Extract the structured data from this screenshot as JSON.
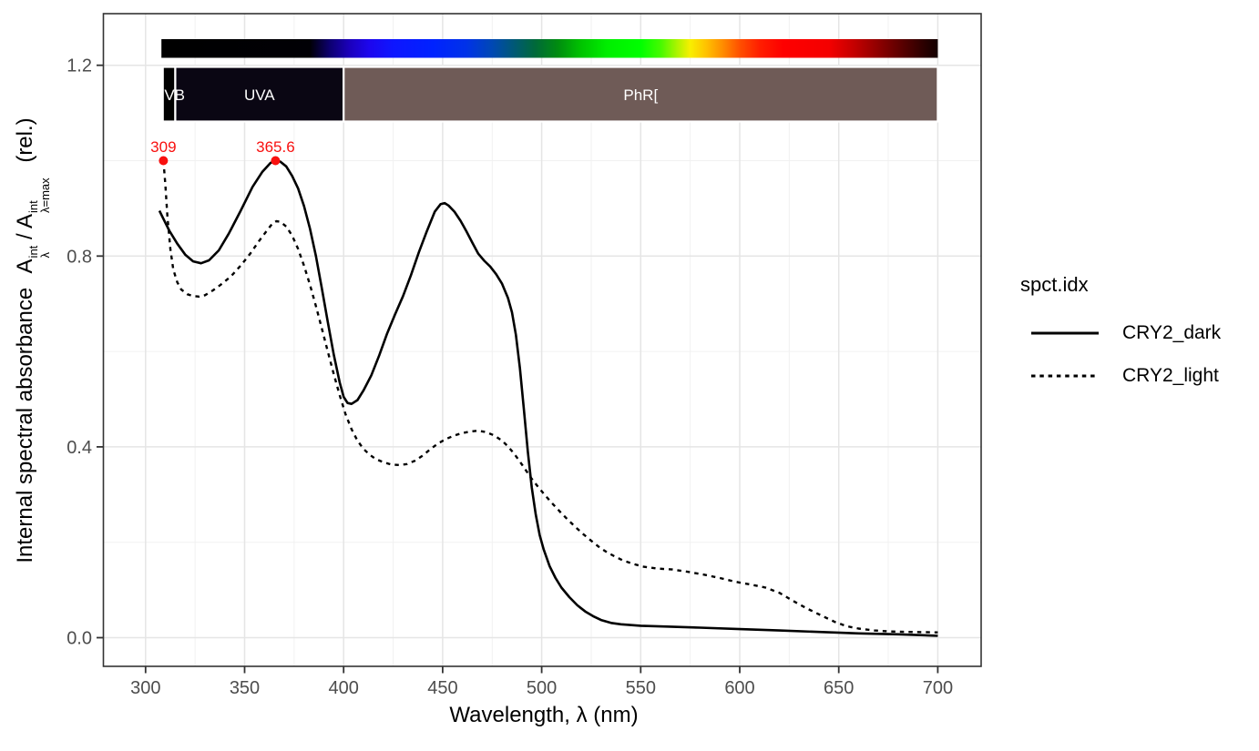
{
  "x_axis": {
    "title": "Wavelength, λ (nm)",
    "tick_labels": [
      "300",
      "350",
      "400",
      "450",
      "500",
      "550",
      "600",
      "650",
      "700"
    ]
  },
  "y_axis": {
    "title_prefix": "Internal spectral absorbance",
    "a_base": "A",
    "a_sup": "int",
    "a_sub_1": "λ",
    "a_sub_2": "λ=max",
    "slash": "/",
    "title_suffix": "(rel.)",
    "tick_labels": [
      "0.0",
      "0.4",
      "0.8",
      "1.2"
    ]
  },
  "legend": {
    "title": "spct.idx",
    "entries": [
      {
        "label": "CRY2_dark",
        "linetype": "solid"
      },
      {
        "label": "CRY2_light",
        "linetype": "dashed"
      }
    ]
  },
  "chart_data": {
    "type": "line",
    "title": "",
    "xlabel": "Wavelength, λ (nm)",
    "ylabel": "Internal spectral absorbance A_λ^int/A_λ=max^int (rel.)",
    "xlim": [
      278.7,
      721.9
    ],
    "ylim": [
      -0.06,
      1.308
    ],
    "x_ticks": [
      300,
      350,
      400,
      450,
      500,
      550,
      600,
      650,
      700
    ],
    "x_minor_ticks": [
      325,
      375,
      425,
      475,
      525,
      575,
      625,
      675
    ],
    "y_ticks": [
      {
        "v": 0.0,
        "label": "0.0"
      },
      {
        "v": 0.4,
        "label": "0.4"
      },
      {
        "v": 0.8,
        "label": "0.8"
      },
      {
        "v": 1.2,
        "label": "1.2"
      }
    ],
    "y_minor_ticks": [
      0.2,
      0.6,
      1.0
    ],
    "grid": true,
    "legend_position": "right",
    "series": [
      {
        "name": "CRY2_dark",
        "linetype": "solid",
        "color": "#000000",
        "points": [
          [
            307,
            0.895
          ],
          [
            309,
            0.878
          ],
          [
            312,
            0.853
          ],
          [
            316,
            0.826
          ],
          [
            320,
            0.803
          ],
          [
            324,
            0.789
          ],
          [
            328,
            0.785
          ],
          [
            332,
            0.791
          ],
          [
            337,
            0.812
          ],
          [
            342,
            0.847
          ],
          [
            348,
            0.895
          ],
          [
            354,
            0.945
          ],
          [
            359,
            0.977
          ],
          [
            363,
            0.995
          ],
          [
            365.6,
            1.0
          ],
          [
            368,
            0.998
          ],
          [
            371,
            0.988
          ],
          [
            374,
            0.968
          ],
          [
            377,
            0.942
          ],
          [
            380,
            0.905
          ],
          [
            383,
            0.858
          ],
          [
            386,
            0.8
          ],
          [
            389,
            0.732
          ],
          [
            392,
            0.662
          ],
          [
            395,
            0.594
          ],
          [
            398,
            0.535
          ],
          [
            400,
            0.505
          ],
          [
            402,
            0.492
          ],
          [
            404,
            0.49
          ],
          [
            407,
            0.498
          ],
          [
            410,
            0.518
          ],
          [
            414,
            0.55
          ],
          [
            418,
            0.592
          ],
          [
            422,
            0.638
          ],
          [
            426,
            0.678
          ],
          [
            430,
            0.716
          ],
          [
            434,
            0.76
          ],
          [
            438,
            0.808
          ],
          [
            442,
            0.852
          ],
          [
            446,
            0.893
          ],
          [
            449,
            0.909
          ],
          [
            451,
            0.911
          ],
          [
            453,
            0.906
          ],
          [
            456,
            0.893
          ],
          [
            459,
            0.874
          ],
          [
            462,
            0.852
          ],
          [
            465,
            0.828
          ],
          [
            468,
            0.805
          ],
          [
            471,
            0.79
          ],
          [
            474,
            0.778
          ],
          [
            477,
            0.762
          ],
          [
            480,
            0.742
          ],
          [
            483,
            0.712
          ],
          [
            485,
            0.682
          ],
          [
            487,
            0.635
          ],
          [
            489,
            0.565
          ],
          [
            491,
            0.48
          ],
          [
            493,
            0.39
          ],
          [
            495,
            0.315
          ],
          [
            497,
            0.258
          ],
          [
            499,
            0.215
          ],
          [
            501,
            0.185
          ],
          [
            504,
            0.15
          ],
          [
            507,
            0.125
          ],
          [
            510,
            0.105
          ],
          [
            514,
            0.085
          ],
          [
            518,
            0.068
          ],
          [
            522,
            0.055
          ],
          [
            526,
            0.045
          ],
          [
            530,
            0.037
          ],
          [
            535,
            0.031
          ],
          [
            540,
            0.028
          ],
          [
            550,
            0.025
          ],
          [
            565,
            0.023
          ],
          [
            580,
            0.021
          ],
          [
            600,
            0.018
          ],
          [
            620,
            0.015
          ],
          [
            640,
            0.012
          ],
          [
            660,
            0.009
          ],
          [
            680,
            0.007
          ],
          [
            700,
            0.004
          ]
        ]
      },
      {
        "name": "CRY2_light",
        "linetype": "dashed",
        "color": "#000000",
        "points": [
          [
            309,
            1.0
          ],
          [
            310,
            0.95
          ],
          [
            311,
            0.885
          ],
          [
            312.5,
            0.815
          ],
          [
            314,
            0.772
          ],
          [
            316,
            0.745
          ],
          [
            318,
            0.73
          ],
          [
            321,
            0.72
          ],
          [
            324,
            0.716
          ],
          [
            327,
            0.715
          ],
          [
            330,
            0.718
          ],
          [
            334,
            0.728
          ],
          [
            338,
            0.74
          ],
          [
            343,
            0.757
          ],
          [
            348,
            0.78
          ],
          [
            353,
            0.806
          ],
          [
            357,
            0.83
          ],
          [
            361,
            0.852
          ],
          [
            364,
            0.868
          ],
          [
            366,
            0.873
          ],
          [
            368,
            0.872
          ],
          [
            371,
            0.862
          ],
          [
            374,
            0.843
          ],
          [
            377,
            0.815
          ],
          [
            380,
            0.78
          ],
          [
            383,
            0.74
          ],
          [
            386,
            0.695
          ],
          [
            389,
            0.648
          ],
          [
            392,
            0.6
          ],
          [
            395,
            0.553
          ],
          [
            398,
            0.508
          ],
          [
            401,
            0.468
          ],
          [
            404,
            0.437
          ],
          [
            407,
            0.413
          ],
          [
            410,
            0.396
          ],
          [
            413,
            0.384
          ],
          [
            416,
            0.375
          ],
          [
            420,
            0.368
          ],
          [
            424,
            0.363
          ],
          [
            428,
            0.362
          ],
          [
            432,
            0.364
          ],
          [
            436,
            0.371
          ],
          [
            440,
            0.382
          ],
          [
            444,
            0.396
          ],
          [
            448,
            0.408
          ],
          [
            452,
            0.417
          ],
          [
            456,
            0.424
          ],
          [
            460,
            0.429
          ],
          [
            464,
            0.432
          ],
          [
            468,
            0.434
          ],
          [
            472,
            0.431
          ],
          [
            476,
            0.424
          ],
          [
            480,
            0.413
          ],
          [
            483,
            0.401
          ],
          [
            486,
            0.386
          ],
          [
            489,
            0.369
          ],
          [
            492,
            0.351
          ],
          [
            495,
            0.333
          ],
          [
            498,
            0.317
          ],
          [
            501,
            0.302
          ],
          [
            505,
            0.283
          ],
          [
            509,
            0.265
          ],
          [
            513,
            0.248
          ],
          [
            517,
            0.232
          ],
          [
            521,
            0.217
          ],
          [
            525,
            0.203
          ],
          [
            529,
            0.19
          ],
          [
            533,
            0.179
          ],
          [
            537,
            0.17
          ],
          [
            541,
            0.162
          ],
          [
            546,
            0.155
          ],
          [
            551,
            0.149
          ],
          [
            558,
            0.145
          ],
          [
            566,
            0.143
          ],
          [
            574,
            0.138
          ],
          [
            582,
            0.132
          ],
          [
            590,
            0.125
          ],
          [
            598,
            0.117
          ],
          [
            606,
            0.111
          ],
          [
            613,
            0.105
          ],
          [
            620,
            0.094
          ],
          [
            627,
            0.077
          ],
          [
            634,
            0.061
          ],
          [
            641,
            0.047
          ],
          [
            648,
            0.033
          ],
          [
            654,
            0.024
          ],
          [
            660,
            0.019
          ],
          [
            668,
            0.015
          ],
          [
            676,
            0.013
          ],
          [
            686,
            0.012
          ],
          [
            700,
            0.011
          ]
        ]
      }
    ],
    "peak_annotations": [
      {
        "x": 309,
        "y": 1.0,
        "label": "309",
        "color": "#f8100f"
      },
      {
        "x": 365.6,
        "y": 1.0,
        "label": "365.6",
        "color": "#f8100f"
      }
    ],
    "spectrum_bar": {
      "from": 308,
      "to": 700,
      "stops": [
        {
          "wl": 308,
          "color": "#000000"
        },
        {
          "wl": 383,
          "color": "#010005"
        },
        {
          "wl": 393,
          "color": "#0d0070"
        },
        {
          "wl": 403,
          "color": "#1b00bc"
        },
        {
          "wl": 413,
          "color": "#1d06ee"
        },
        {
          "wl": 425,
          "color": "#0e16ff"
        },
        {
          "wl": 445,
          "color": "#0022ff"
        },
        {
          "wl": 462,
          "color": "#0032e8"
        },
        {
          "wl": 475,
          "color": "#0048b4"
        },
        {
          "wl": 487,
          "color": "#005a70"
        },
        {
          "wl": 497,
          "color": "#006a38"
        },
        {
          "wl": 508,
          "color": "#008c10"
        },
        {
          "wl": 520,
          "color": "#00c400"
        },
        {
          "wl": 533,
          "color": "#00ee00"
        },
        {
          "wl": 550,
          "color": "#00ff00"
        },
        {
          "wl": 560,
          "color": "#45fa00"
        },
        {
          "wl": 568,
          "color": "#a8f400"
        },
        {
          "wl": 575,
          "color": "#f8ef00"
        },
        {
          "wl": 583,
          "color": "#ffc200"
        },
        {
          "wl": 591,
          "color": "#ff8f00"
        },
        {
          "wl": 600,
          "color": "#ff5000"
        },
        {
          "wl": 610,
          "color": "#ff1e00"
        },
        {
          "wl": 622,
          "color": "#fe0000"
        },
        {
          "wl": 645,
          "color": "#f40000"
        },
        {
          "wl": 658,
          "color": "#c30000"
        },
        {
          "wl": 670,
          "color": "#8e0000"
        },
        {
          "wl": 683,
          "color": "#550000"
        },
        {
          "wl": 695,
          "color": "#230000"
        },
        {
          "wl": 700,
          "color": "#150000"
        }
      ]
    },
    "wavebands": [
      {
        "label": "UVB",
        "from": 308.7,
        "to": 315,
        "fill": "#000000",
        "text_color": "#ffffff"
      },
      {
        "label": "UVA",
        "from": 315,
        "to": 400,
        "fill": "#0a0613",
        "text_color": "#ffffff"
      },
      {
        "label": "PhR[",
        "from": 400,
        "to": 700,
        "fill": "#6f5b57",
        "text_color": "#ffffff"
      }
    ]
  }
}
